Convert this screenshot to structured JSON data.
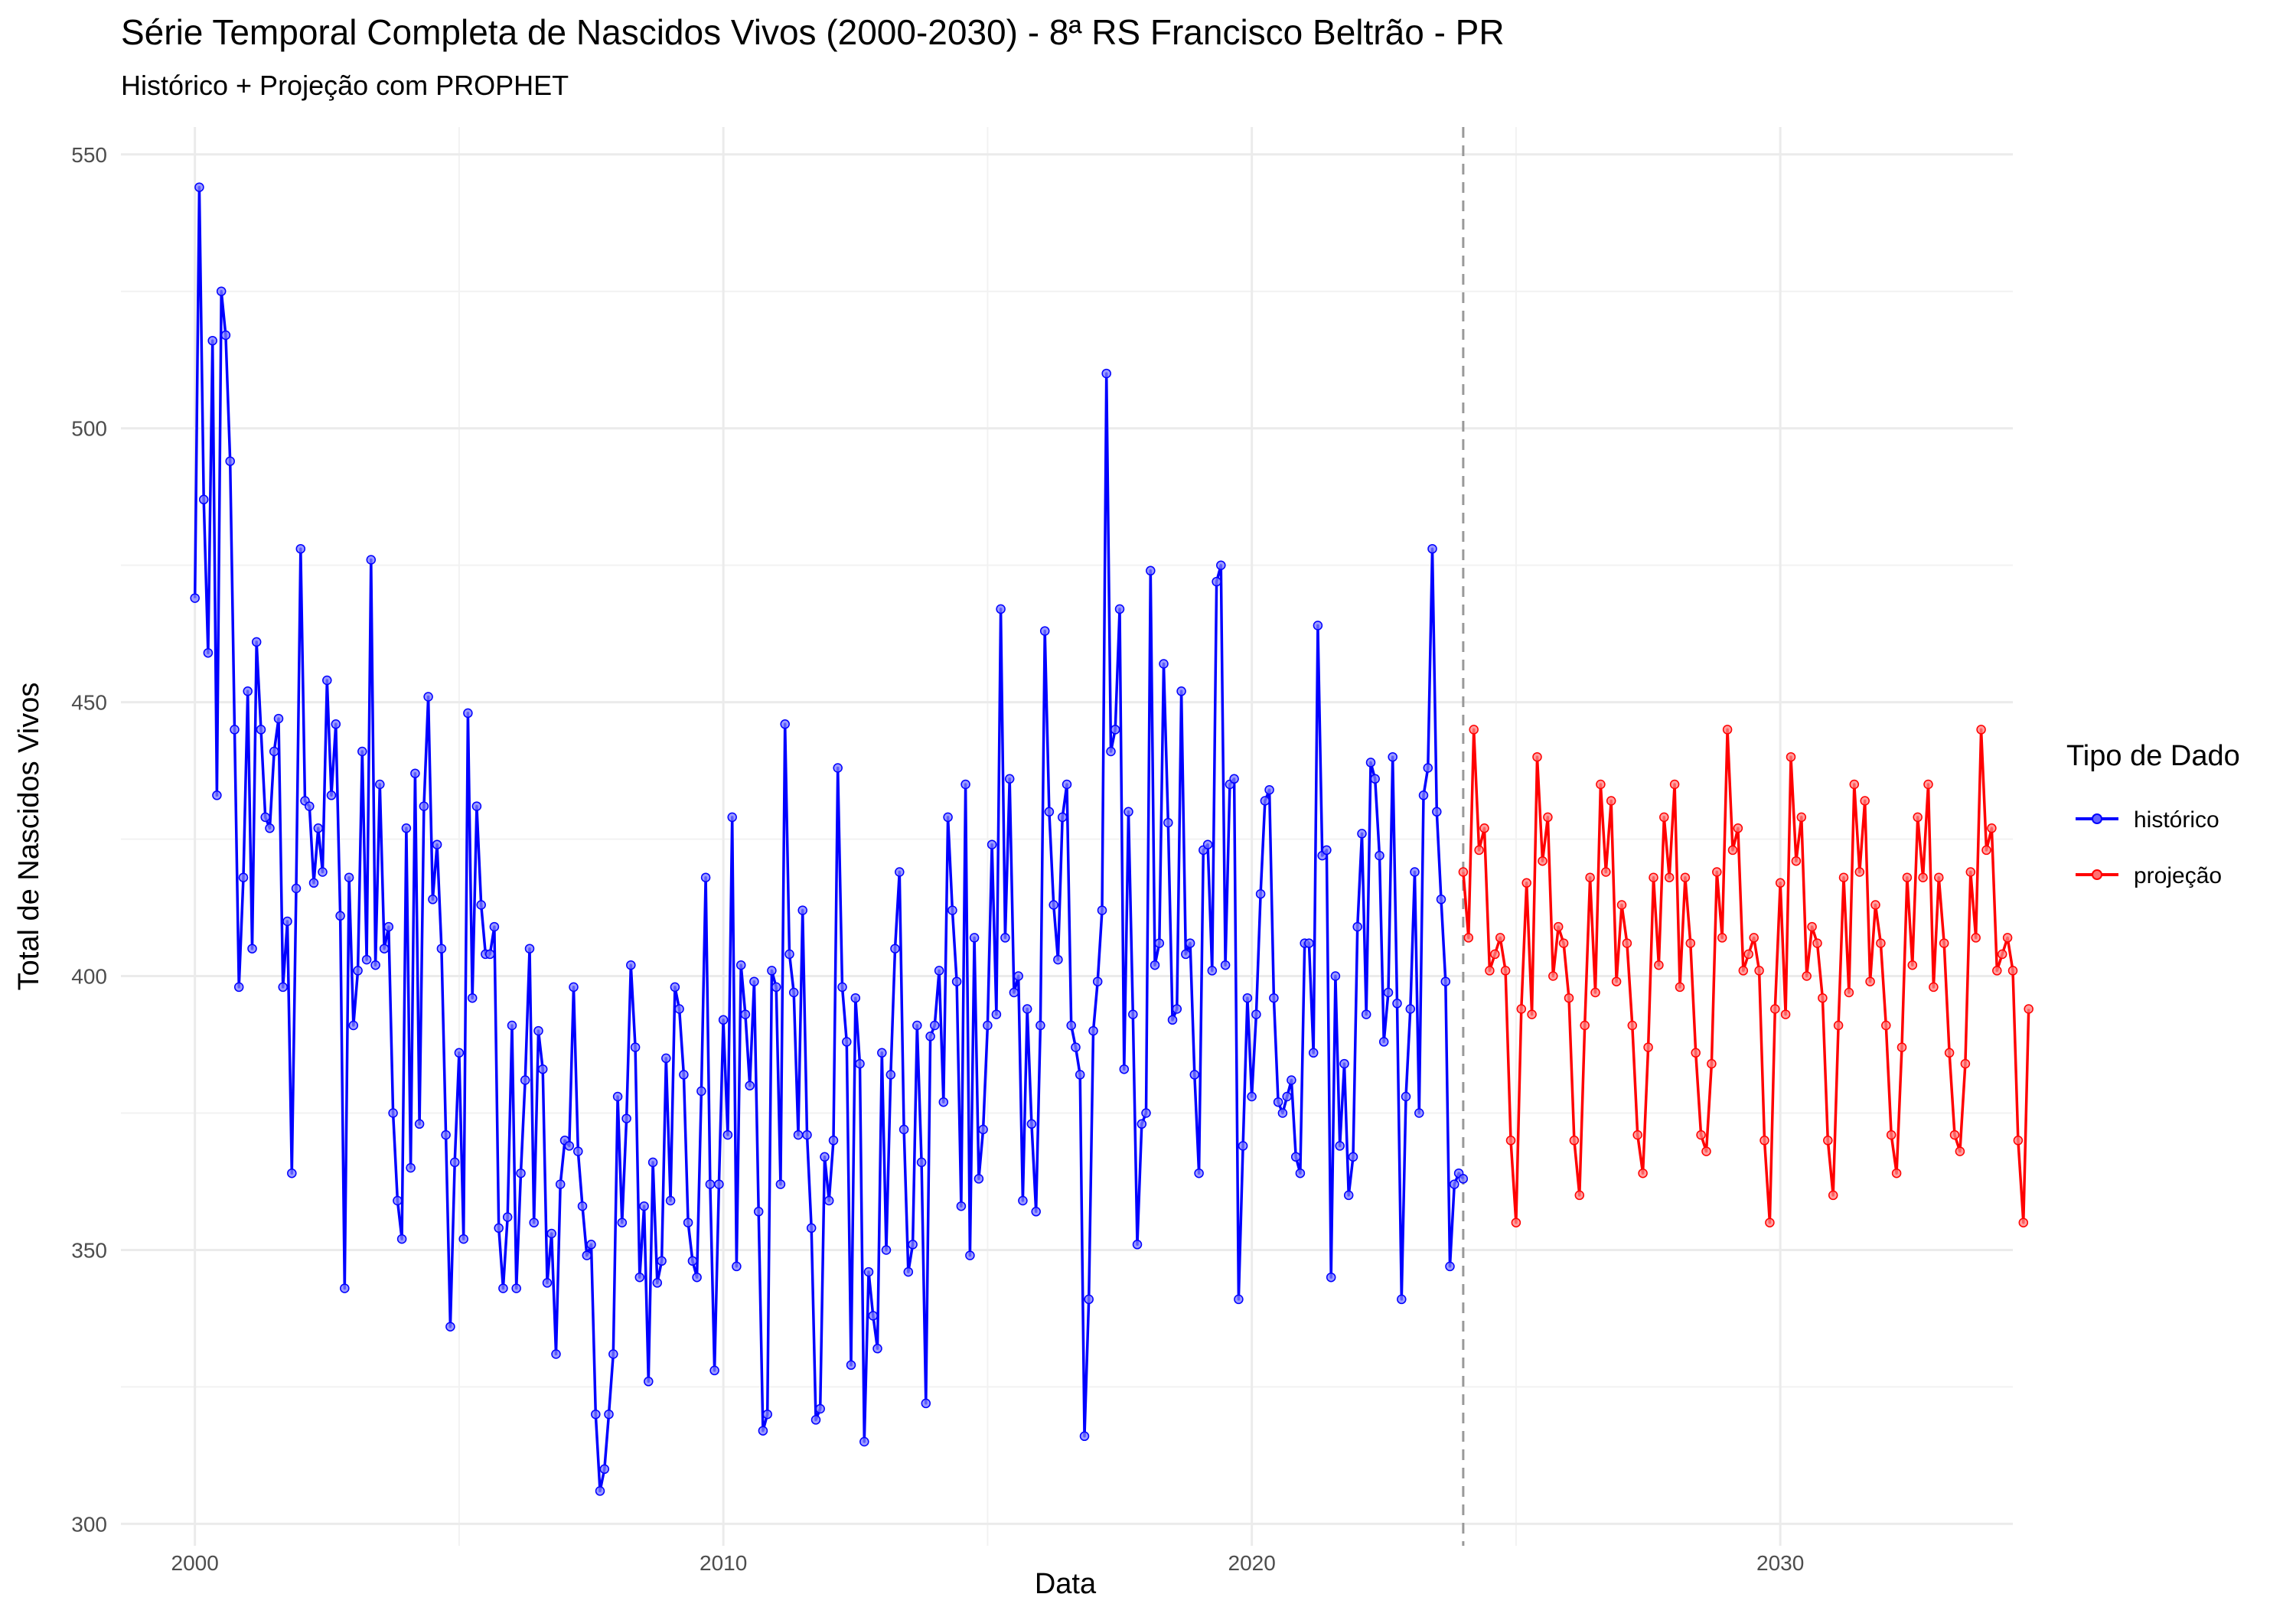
{
  "chart_data": {
    "type": "line",
    "title": "Série Temporal Completa de Nascidos Vivos (2000-2030) -  8ª RS Francisco Beltrão - PR",
    "subtitle": "Histórico + Projeção com PROPHET",
    "xlabel": "Data",
    "ylabel": "Total de Nascidos Vivos",
    "xlim": [
      1998.6,
      2034.4
    ],
    "ylim": [
      296,
      555
    ],
    "x_ticks": [
      2000,
      2010,
      2020,
      2030
    ],
    "y_ticks": [
      300,
      350,
      400,
      450,
      500,
      550
    ],
    "grid": true,
    "legend": {
      "title": "Tipo de Dado",
      "position": "right"
    },
    "forecast_start": 2024.0,
    "series": [
      {
        "name": "histórico",
        "color": "#0000ff",
        "start": 2000.0,
        "step": 0.08333,
        "values": [
          469,
          544,
          487,
          459,
          516,
          433,
          525,
          517,
          494,
          445,
          398,
          418,
          452,
          405,
          461,
          445,
          429,
          427,
          441,
          447,
          398,
          410,
          364,
          416,
          478,
          432,
          431,
          417,
          427,
          419,
          454,
          433,
          446,
          411,
          343,
          418,
          391,
          401,
          441,
          403,
          476,
          402,
          435,
          405,
          409,
          375,
          359,
          352,
          427,
          365,
          437,
          373,
          431,
          451,
          414,
          424,
          405,
          371,
          336,
          366,
          386,
          352,
          448,
          396,
          431,
          413,
          404,
          404,
          409,
          354,
          343,
          356,
          391,
          343,
          364,
          381,
          405,
          355,
          390,
          383,
          344,
          353,
          331,
          362,
          370,
          369,
          398,
          368,
          358,
          349,
          351,
          320,
          306,
          310,
          320,
          331,
          378,
          355,
          374,
          402,
          387,
          345,
          358,
          326,
          366,
          344,
          348,
          385,
          359,
          398,
          394,
          382,
          355,
          348,
          345,
          379,
          418,
          362,
          328,
          362,
          392,
          371,
          429,
          347,
          402,
          393,
          380,
          399,
          357,
          317,
          320,
          401,
          398,
          362,
          446,
          404,
          397,
          371,
          412,
          371,
          354,
          319,
          321,
          367,
          359,
          370,
          438,
          398,
          388,
          329,
          396,
          384,
          315,
          346,
          338,
          332,
          386,
          350,
          382,
          405,
          419,
          372,
          346,
          351,
          391,
          366,
          322,
          389,
          391,
          401,
          377,
          429,
          412,
          399,
          358,
          435,
          349,
          407,
          363,
          372,
          391,
          424,
          393,
          467,
          407,
          436,
          397,
          400,
          359,
          394,
          373,
          357,
          391,
          463,
          430,
          413,
          403,
          429,
          435,
          391,
          387,
          382,
          316,
          341,
          390,
          399,
          412,
          510,
          441,
          445,
          467,
          383,
          430,
          393,
          351,
          373,
          375,
          474,
          402,
          406,
          457,
          428,
          392,
          394,
          452,
          404,
          406,
          382,
          364,
          423,
          424,
          401,
          472,
          475,
          402,
          435,
          436,
          341,
          369,
          396,
          378,
          393,
          415,
          432,
          434,
          396,
          377,
          375,
          378,
          381,
          367,
          364,
          406,
          406,
          386,
          464,
          422,
          423,
          345,
          400,
          369,
          384,
          360,
          367,
          409,
          426,
          393,
          439,
          436,
          422,
          388,
          397,
          440,
          395,
          341,
          378,
          394,
          419,
          375,
          433,
          438,
          478,
          430,
          414,
          399,
          347,
          362,
          364,
          363
        ]
      },
      {
        "name": "projeção",
        "color": "#ff0000",
        "start": 2024.0,
        "step": 0.1,
        "values": [
          419,
          407,
          445,
          423,
          427,
          401,
          404,
          407,
          401,
          370,
          355,
          394,
          417,
          393,
          440,
          421,
          429,
          400,
          409,
          406,
          396,
          370,
          360,
          391,
          418,
          397,
          435,
          419,
          432,
          399,
          413,
          406,
          391,
          371,
          364,
          387,
          418,
          402,
          429,
          418,
          435,
          398,
          418,
          406,
          386,
          371,
          368,
          384,
          419,
          407,
          445,
          423,
          427,
          401,
          404,
          407,
          401,
          370,
          355,
          394,
          417,
          393,
          440,
          421,
          429,
          400,
          409,
          406,
          396,
          370,
          360,
          391,
          418,
          397,
          435,
          419,
          432,
          399,
          413,
          406,
          391,
          371,
          364,
          387,
          418,
          402,
          429,
          418,
          435,
          398,
          418,
          406,
          386,
          371,
          368,
          384,
          419,
          407,
          445,
          423,
          427,
          401,
          404,
          407,
          401,
          370,
          355,
          394
        ]
      }
    ]
  }
}
